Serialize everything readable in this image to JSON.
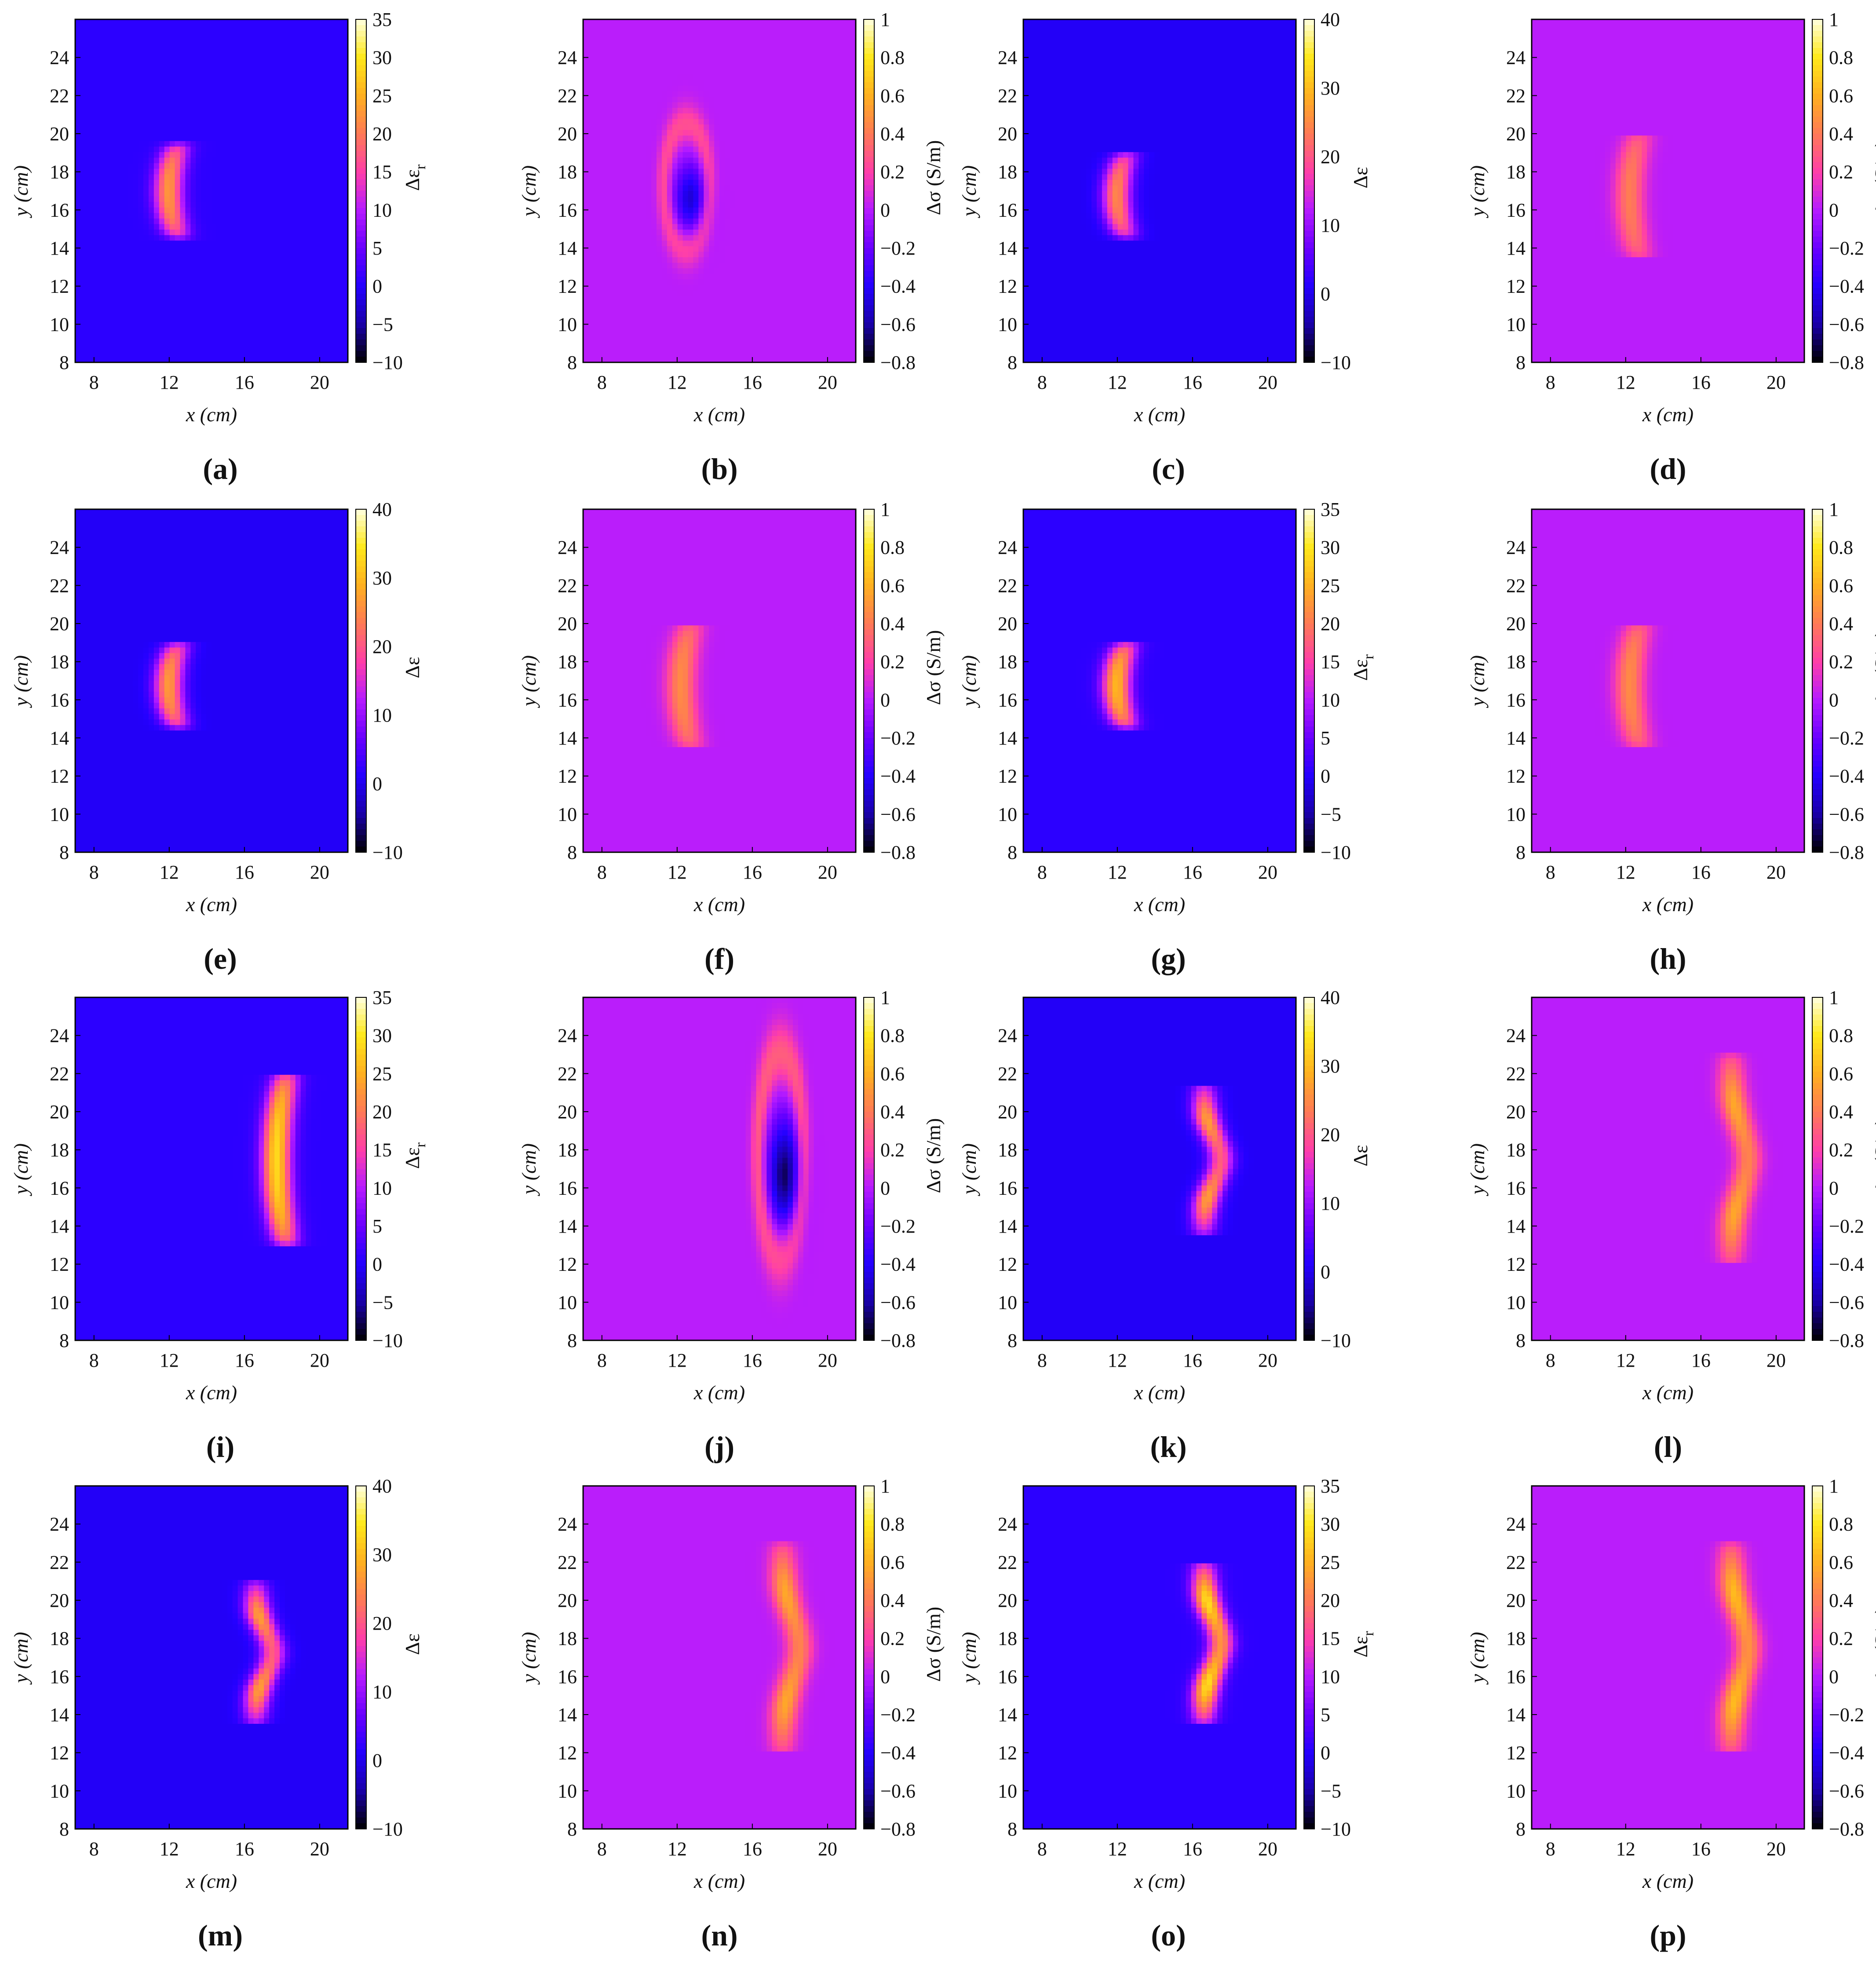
{
  "colormaps": {
    "blue_field": [
      "#000000",
      "#1a00a8",
      "#2400ff",
      "#6a00ff",
      "#b61bff",
      "#ff3fa8",
      "#ff7a55",
      "#ffb020",
      "#ffe81a",
      "#ffffe0"
    ],
    "purple_field": [
      "#000000",
      "#1a00a8",
      "#2400ff",
      "#6a00ff",
      "#b61bff",
      "#ff3fa8",
      "#ff7a55",
      "#ffb020",
      "#ffe81a",
      "#ffffe0"
    ]
  },
  "panels": [
    {
      "id": "a",
      "caption": "(a)",
      "quantity": "eps_r",
      "cbar_label": "Δε",
      "cbar_sub": "r",
      "cbar_ticks": [
        "35",
        "30",
        "25",
        "20",
        "15",
        "10",
        "5",
        "0",
        "−5",
        "−10"
      ],
      "cbar_range": [
        -10,
        35
      ],
      "xticks": [
        "8",
        "12",
        "16",
        "20"
      ],
      "xtick_values": [
        8,
        12,
        16,
        20
      ]
    },
    {
      "id": "b",
      "caption": "(b)",
      "quantity": "sigma",
      "cbar_label": "Δσ (S/m)",
      "cbar_sub": "",
      "cbar_ticks": [
        "1",
        "0.8",
        "0.6",
        "0.4",
        "0.2",
        "0",
        "−0.2",
        "−0.4",
        "−0.6",
        "−0.8"
      ],
      "cbar_range": [
        -0.8,
        1
      ],
      "xticks": [
        "8",
        "12",
        "16",
        "20"
      ],
      "xtick_values": [
        8,
        12,
        16,
        20
      ]
    },
    {
      "id": "c",
      "caption": "(c)",
      "quantity": "eps",
      "cbar_label": "Δε",
      "cbar_sub": "",
      "cbar_ticks": [
        "40",
        "30",
        "20",
        "10",
        "0",
        "−10"
      ],
      "cbar_range": [
        -10,
        40
      ],
      "xticks": [
        "8",
        "12",
        "16",
        "20"
      ],
      "xtick_values": [
        8,
        12,
        16,
        20
      ]
    },
    {
      "id": "d",
      "caption": "(d)",
      "quantity": "sigma",
      "cbar_label": "Δσ (S/m)",
      "cbar_sub": "",
      "cbar_ticks": [
        "1",
        "0.8",
        "0.6",
        "0.4",
        "0.2",
        "0",
        "−0.2",
        "−0.4",
        "−0.6",
        "−0.8"
      ],
      "cbar_range": [
        -0.8,
        1
      ],
      "xticks": [
        "8",
        "12",
        "16",
        "20"
      ],
      "xtick_values": [
        8,
        12,
        16,
        20
      ]
    },
    {
      "id": "e",
      "caption": "(e)",
      "quantity": "eps",
      "cbar_label": "Δε",
      "cbar_sub": "",
      "cbar_ticks": [
        "40",
        "30",
        "20",
        "10",
        "0",
        "−10"
      ],
      "cbar_range": [
        -10,
        40
      ],
      "xticks": [
        "8",
        "12",
        "16",
        "20"
      ],
      "xtick_values": [
        8,
        12,
        16,
        20
      ]
    },
    {
      "id": "f",
      "caption": "(f)",
      "quantity": "sigma",
      "cbar_label": "Δσ (S/m)",
      "cbar_sub": "",
      "cbar_ticks": [
        "1",
        "0.8",
        "0.6",
        "0.4",
        "0.2",
        "0",
        "−0.2",
        "−0.4",
        "−0.6",
        "−0.8"
      ],
      "cbar_range": [
        -0.8,
        1
      ],
      "xticks": [
        "8",
        "12",
        "16",
        "20"
      ],
      "xtick_values": [
        8,
        12,
        16,
        20
      ]
    },
    {
      "id": "g",
      "caption": "(g)",
      "quantity": "eps_r",
      "cbar_label": "Δε",
      "cbar_sub": "r",
      "cbar_ticks": [
        "35",
        "30",
        "25",
        "20",
        "15",
        "10",
        "5",
        "0",
        "−5",
        "−10"
      ],
      "cbar_range": [
        -10,
        35
      ],
      "xticks": [
        "8",
        "12",
        "16",
        "20"
      ],
      "xtick_values": [
        8,
        12,
        16,
        20
      ]
    },
    {
      "id": "h",
      "caption": "(h)",
      "quantity": "sigma",
      "cbar_label": "Δσ (S/m)",
      "cbar_sub": "",
      "cbar_ticks": [
        "1",
        "0.8",
        "0.6",
        "0.4",
        "0.2",
        "0",
        "−0.2",
        "−0.4",
        "−0.6",
        "−0.8"
      ],
      "cbar_range": [
        -0.8,
        1
      ],
      "xticks": [
        "8",
        "12",
        "16",
        "20"
      ],
      "xtick_values": [
        8,
        12,
        16,
        20
      ]
    },
    {
      "id": "i",
      "caption": "(i)",
      "quantity": "eps_r",
      "cbar_label": "Δε",
      "cbar_sub": "r",
      "cbar_ticks": [
        "35",
        "30",
        "25",
        "20",
        "15",
        "10",
        "5",
        "0",
        "−5",
        "−10"
      ],
      "cbar_range": [
        -10,
        35
      ],
      "xticks": [
        "8",
        "12",
        "16",
        "20"
      ],
      "xtick_values": [
        8,
        12,
        16,
        20
      ]
    },
    {
      "id": "j",
      "caption": "(j)",
      "quantity": "sigma",
      "cbar_label": "Δσ (S/m)",
      "cbar_sub": "",
      "cbar_ticks": [
        "1",
        "0.8",
        "0.6",
        "0.4",
        "0.2",
        "0",
        "−0.2",
        "−0.4",
        "−0.6",
        "−0.8"
      ],
      "cbar_range": [
        -0.8,
        1
      ],
      "xticks": [
        "8",
        "12",
        "16",
        "20"
      ],
      "xtick_values": [
        8,
        12,
        16,
        20
      ]
    },
    {
      "id": "k",
      "caption": "(k)",
      "quantity": "eps",
      "cbar_label": "Δε",
      "cbar_sub": "",
      "cbar_ticks": [
        "40",
        "30",
        "20",
        "10",
        "0",
        "−10"
      ],
      "cbar_range": [
        -10,
        40
      ],
      "xticks": [
        "8",
        "12",
        "16",
        "20"
      ],
      "xtick_values": [
        8,
        12,
        16,
        20
      ]
    },
    {
      "id": "l",
      "caption": "(l)",
      "quantity": "sigma",
      "cbar_label": "Δσ (S/m)",
      "cbar_sub": "",
      "cbar_ticks": [
        "1",
        "0.8",
        "0.6",
        "0.4",
        "0.2",
        "0",
        "−0.2",
        "−0.4",
        "−0.6",
        "−0.8"
      ],
      "cbar_range": [
        -0.8,
        1
      ],
      "xticks": [
        "8",
        "12",
        "16",
        "20"
      ],
      "xtick_values": [
        8,
        12,
        16,
        20
      ]
    },
    {
      "id": "m",
      "caption": "(m)",
      "quantity": "eps",
      "cbar_label": "Δε",
      "cbar_sub": "",
      "cbar_ticks": [
        "40",
        "30",
        "20",
        "10",
        "0",
        "−10"
      ],
      "cbar_range": [
        -10,
        40
      ],
      "xticks": [
        "8",
        "12",
        "16",
        "20"
      ],
      "xtick_values": [
        8,
        12,
        16,
        20
      ]
    },
    {
      "id": "n",
      "caption": "(n)",
      "quantity": "sigma",
      "cbar_label": "Δσ (S/m)",
      "cbar_sub": "",
      "cbar_ticks": [
        "1",
        "0.8",
        "0.6",
        "0.4",
        "0.2",
        "0",
        "−0.2",
        "−0.4",
        "−0.6",
        "−0.8"
      ],
      "cbar_range": [
        -0.8,
        1
      ],
      "xticks": [
        "8",
        "12",
        "16",
        "20"
      ],
      "xtick_values": [
        8,
        12,
        16,
        20
      ]
    },
    {
      "id": "o",
      "caption": "(o)",
      "quantity": "eps_r",
      "cbar_label": "Δε",
      "cbar_sub": "r",
      "cbar_ticks": [
        "35",
        "30",
        "25",
        "20",
        "15",
        "10",
        "5",
        "0",
        "−5",
        "−10"
      ],
      "cbar_range": [
        -10,
        35
      ],
      "xticks": [
        "8",
        "12",
        "16",
        "20"
      ],
      "xtick_values": [
        8,
        12,
        16,
        20
      ]
    },
    {
      "id": "p",
      "caption": "(p)",
      "quantity": "sigma",
      "cbar_label": "Δσ (S/m)",
      "cbar_sub": "",
      "cbar_ticks": [
        "1",
        "0.8",
        "0.6",
        "0.4",
        "0.2",
        "0",
        "−0.2",
        "−0.4",
        "−0.6",
        "−0.8"
      ],
      "cbar_range": [
        -0.8,
        1
      ],
      "xticks": [
        "8",
        "12",
        "16",
        "20"
      ],
      "xtick_values": [
        8,
        12,
        16,
        20
      ]
    }
  ],
  "chart_data": {
    "type": "heatmap",
    "grid": "4x4",
    "xlabel": "x (cm)",
    "ylabel": "y (cm)",
    "xlim": [
      7,
      21.5
    ],
    "ylim": [
      8,
      26
    ],
    "yticks": [
      8,
      10,
      12,
      14,
      16,
      18,
      20,
      22,
      24
    ],
    "features": [
      {
        "panel": "a",
        "shape": "kidney",
        "x_center": 12.5,
        "y_range": [
          14.5,
          19.5
        ],
        "peak": 22
      },
      {
        "panel": "b",
        "shape": "ring-with-dark-core",
        "x_center": 12.5,
        "y_range": [
          14,
          20.5
        ],
        "peak": 0.25,
        "trough": -0.5
      },
      {
        "panel": "c",
        "shape": "kidney",
        "x_center": 12.5,
        "y_range": [
          14.5,
          19
        ],
        "peak": 24
      },
      {
        "panel": "d",
        "shape": "crescent",
        "x_center": 12,
        "y_range": [
          13.5,
          20
        ],
        "peak": 0.4
      },
      {
        "panel": "e",
        "shape": "kidney",
        "x_center": 12.5,
        "y_range": [
          14.5,
          19
        ],
        "peak": 26
      },
      {
        "panel": "f",
        "shape": "crescent",
        "x_center": 12,
        "y_range": [
          13.5,
          20
        ],
        "peak": 0.45
      },
      {
        "panel": "g",
        "shape": "kidney",
        "x_center": 12.5,
        "y_range": [
          14.5,
          19
        ],
        "peak": 25
      },
      {
        "panel": "h",
        "shape": "crescent",
        "x_center": 12,
        "y_range": [
          13.5,
          20
        ],
        "peak": 0.45
      },
      {
        "panel": "i",
        "shape": "crescent",
        "x_center": 17.5,
        "y_range": [
          13,
          22
        ],
        "peak": 28
      },
      {
        "panel": "j",
        "shape": "ring-with-dark-core",
        "x_center": 17.5,
        "y_range": [
          12.5,
          23
        ],
        "peak": 0.3,
        "trough": -0.7
      },
      {
        "panel": "k",
        "shape": "lobed-line",
        "x_center": 17,
        "y_range": [
          13.5,
          21.5
        ],
        "peak": 26
      },
      {
        "panel": "l",
        "shape": "lobed-line",
        "x_center": 18,
        "y_range": [
          12,
          23
        ],
        "peak": 0.55
      },
      {
        "panel": "m",
        "shape": "lobed-line",
        "x_center": 17,
        "y_range": [
          13.5,
          21
        ],
        "peak": 26
      },
      {
        "panel": "n",
        "shape": "lobed-line",
        "x_center": 18,
        "y_range": [
          12,
          23
        ],
        "peak": 0.55
      },
      {
        "panel": "o",
        "shape": "lobed-line",
        "x_center": 17,
        "y_range": [
          13.5,
          22
        ],
        "peak": 28
      },
      {
        "panel": "p",
        "shape": "lobed-line",
        "x_center": 18,
        "y_range": [
          12,
          23
        ],
        "peak": 0.62
      }
    ]
  }
}
